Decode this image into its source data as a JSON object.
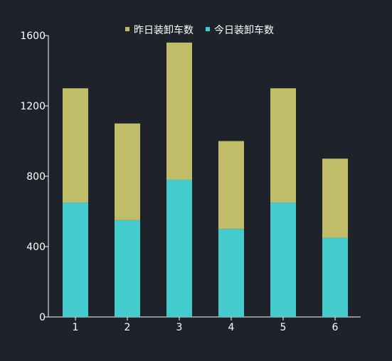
{
  "chart_data": {
    "type": "bar",
    "stacked": true,
    "categories": [
      "1",
      "2",
      "3",
      "4",
      "5",
      "6"
    ],
    "series": [
      {
        "name": "今日装卸车数",
        "values": [
          650,
          550,
          780,
          500,
          650,
          450
        ],
        "color": "#44cccc"
      },
      {
        "name": "昨日装卸车数",
        "values": [
          650,
          550,
          780,
          500,
          650,
          450
        ],
        "color": "#c0bc68"
      }
    ],
    "legend_order": [
      "昨日装卸车数",
      "今日装卸车数"
    ],
    "legend_position": "top-center",
    "ylim": [
      0,
      1600
    ],
    "yticks": [
      0,
      400,
      800,
      1200,
      1600
    ],
    "grid": false,
    "title": "",
    "xlabel": "",
    "ylabel": "",
    "colors": {
      "background": "#1e222a",
      "axis": "#ffffff",
      "text": "#ffffff"
    }
  }
}
